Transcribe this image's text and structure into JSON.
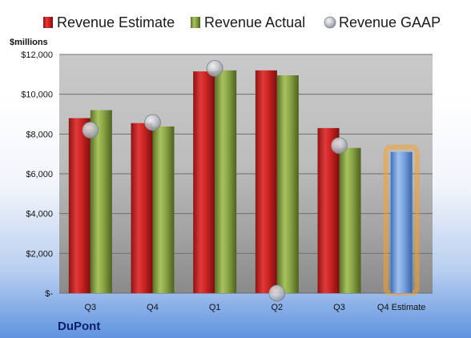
{
  "chart_data": {
    "type": "bar",
    "company": "DuPont",
    "unit_label": "$millions",
    "categories": [
      "Q3",
      "Q4",
      "Q1",
      "Q2",
      "Q3",
      "Q4 Estimate"
    ],
    "series": [
      {
        "name": "Revenue Estimate",
        "type": "bar",
        "color": "#cc2222",
        "values": [
          8800,
          8550,
          11150,
          11200,
          8300,
          7100
        ]
      },
      {
        "name": "Revenue Actual",
        "type": "bar",
        "color": "#7f9a3a",
        "values": [
          9200,
          8380,
          11200,
          10950,
          7300,
          null
        ]
      },
      {
        "name": "Revenue GAAP",
        "type": "scatter",
        "color": "#b8bcc4",
        "values": [
          8200,
          8580,
          11300,
          0,
          7420,
          null
        ]
      }
    ],
    "forecast_bar_color": "#6b9ad8",
    "forecast_glow_color": "#f5a030",
    "ylim": [
      0,
      12000
    ],
    "yticks": [
      0,
      2000,
      4000,
      6000,
      8000,
      10000,
      12000
    ],
    "ytick_labels": [
      "$-",
      "$2,000",
      "$4,000",
      "$6,000",
      "$8,000",
      "$10,000",
      "$12,000"
    ],
    "grid": true,
    "legend_position": "top"
  }
}
